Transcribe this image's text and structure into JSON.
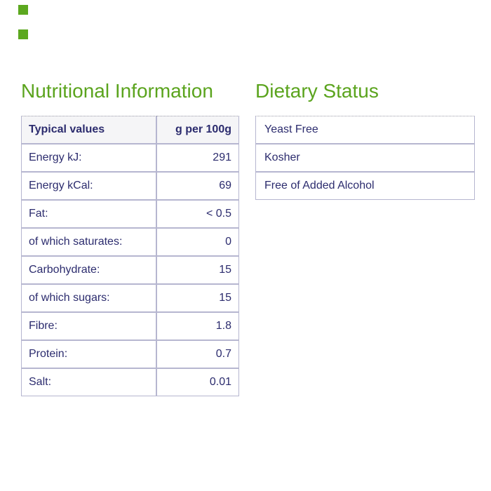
{
  "colors": {
    "heading_green": "#5ba41e",
    "marker_green": "#5ca81f",
    "text_navy": "#2c2c6e",
    "table_border": "#b6b6d0",
    "table_top_dotted_border": "#9a9aa8",
    "header_row_background": "#f5f5f7",
    "page_background": "#ffffff"
  },
  "nutrition": {
    "title": "Nutritional Information",
    "table": {
      "header": {
        "label": "Typical values",
        "value": "g per 100g"
      },
      "rows": [
        {
          "label": "Energy kJ:",
          "value": "291"
        },
        {
          "label": "Energy kCal:",
          "value": "69"
        },
        {
          "label": "Fat:",
          "value": "< 0.5"
        },
        {
          "label": "of which saturates:",
          "value": "0"
        },
        {
          "label": "Carbohydrate:",
          "value": "15"
        },
        {
          "label": "of which sugars:",
          "value": "15"
        },
        {
          "label": "Fibre:",
          "value": "1.8"
        },
        {
          "label": "Protein:",
          "value": "0.7"
        },
        {
          "label": "Salt:",
          "value": "0.01"
        }
      ]
    }
  },
  "dietary": {
    "title": "Dietary Status",
    "items": [
      "Yeast Free",
      "Kosher",
      "Free of Added Alcohol"
    ]
  }
}
